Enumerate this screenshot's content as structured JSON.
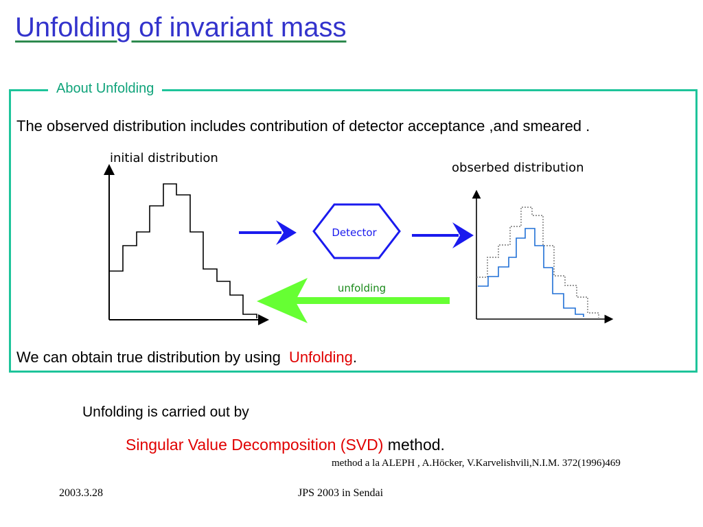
{
  "slide": {
    "title": "Unfolding of invariant mass",
    "box_legend": "About  Unfolding",
    "intro_text": "The observed distribution includes contribution of detector acceptance ,and  smeared .",
    "diagram": {
      "initial_label": "initial distribution",
      "observed_label": "obserbed distribution",
      "detector_label": "Detector",
      "unfolding_label": "unfolding",
      "colors": {
        "forward_arrow": "#1a1aee",
        "unfold_arrow": "#66ff33",
        "detector": "#1a1aee",
        "observed_line": "#1f6fd6",
        "box_border": "#1ec49a"
      }
    },
    "conclusion_prefix": "We can obtain true distribution by using ",
    "conclusion_highlight": "Unfolding",
    "conclusion_suffix": ".",
    "carried_out": "Unfolding is carried out by",
    "svd_highlight": "Singular Value Decomposition  (SVD)",
    "svd_suffix": " method.",
    "reference": "method a la ALEPH , A.Höcker, V.Karvelishvili,N.I.M.  372(1996)469",
    "footer_date": "2003.3.28",
    "footer_event": "JPS 2003 in Sendai"
  }
}
